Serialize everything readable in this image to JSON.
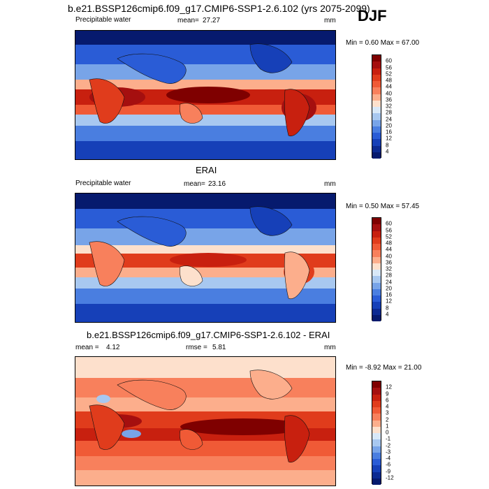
{
  "header": {
    "title": "b.e21.BSSP126cmip6.f09_g17.CMIP6-SSP1-2.6.102 (yrs 2075-2099)",
    "season": "DJF"
  },
  "panels": [
    {
      "id": "model",
      "title": "",
      "variable": "Precipitable water",
      "mean_label": "mean=",
      "mean_value": "27.27",
      "stat2_label": "",
      "stat2_value": "",
      "units": "mm",
      "minmax": "Min =   0.60 Max =  67.00",
      "colorbar": {
        "labels": [
          "60",
          "56",
          "52",
          "48",
          "44",
          "40",
          "36",
          "32",
          "28",
          "24",
          "20",
          "16",
          "12",
          "8",
          "4"
        ],
        "colors": [
          "#7f0000",
          "#a50f0f",
          "#c8200f",
          "#e03c1c",
          "#f05a36",
          "#f8805c",
          "#fcae8c",
          "#fde0cc",
          "#d8e8f8",
          "#a8c8f0",
          "#78a4e8",
          "#4a7ee0",
          "#2a5cd6",
          "#1640b8",
          "#0c2a92",
          "#061a6e"
        ]
      }
    },
    {
      "id": "obs",
      "title": "ERAI",
      "variable": "Precipitable water",
      "mean_label": "mean=",
      "mean_value": "23.16",
      "stat2_label": "",
      "stat2_value": "",
      "units": "mm",
      "minmax": "Min =   0.50 Max =  57.45",
      "colorbar": {
        "labels": [
          "60",
          "56",
          "52",
          "48",
          "44",
          "40",
          "36",
          "32",
          "28",
          "24",
          "20",
          "16",
          "12",
          "8",
          "4"
        ],
        "colors": [
          "#7f0000",
          "#a50f0f",
          "#c8200f",
          "#e03c1c",
          "#f05a36",
          "#f8805c",
          "#fcae8c",
          "#fde0cc",
          "#d8e8f8",
          "#a8c8f0",
          "#78a4e8",
          "#4a7ee0",
          "#2a5cd6",
          "#1640b8",
          "#0c2a92",
          "#061a6e"
        ]
      }
    },
    {
      "id": "diff",
      "title": "b.e21.BSSP126cmip6.f09_g17.CMIP6-SSP1-2.6.102 - ERAI",
      "variable": "",
      "mean_label": "mean =",
      "mean_value": "4.12",
      "stat2_label": "rmse =",
      "stat2_value": "5.81",
      "units": "mm",
      "minmax": "Min =  -8.92 Max =  21.00",
      "colorbar": {
        "labels": [
          "12",
          "9",
          "6",
          "4",
          "3",
          "2",
          "1",
          "0",
          "-1",
          "-2",
          "-3",
          "-4",
          "-6",
          "-9",
          "-12"
        ],
        "colors": [
          "#7f0000",
          "#a50f0f",
          "#c8200f",
          "#e03c1c",
          "#f05a36",
          "#f8805c",
          "#fcae8c",
          "#fde0cc",
          "#d8e8f8",
          "#a8c8f0",
          "#78a4e8",
          "#4a7ee0",
          "#2a5cd6",
          "#1640b8",
          "#0c2a92",
          "#061a6e"
        ]
      }
    }
  ]
}
